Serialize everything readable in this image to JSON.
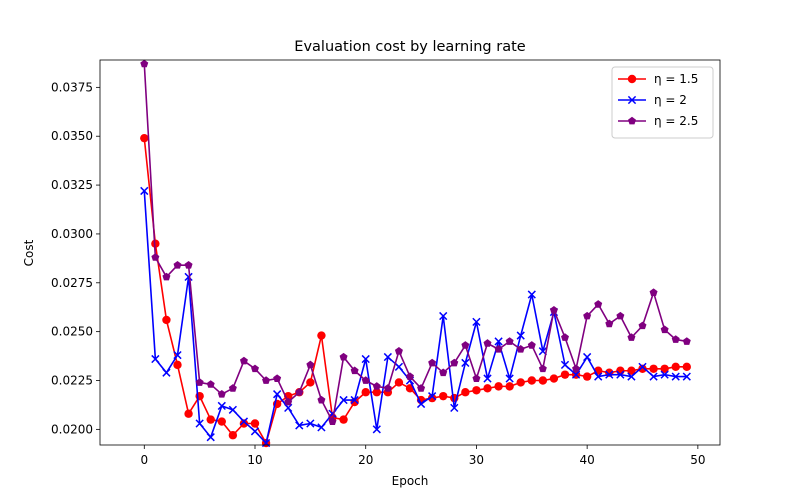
{
  "chart_data": {
    "type": "line",
    "title": "Evaluation cost by learning rate",
    "xlabel": "Epoch",
    "ylabel": "Cost",
    "xlim": [
      -4,
      52
    ],
    "ylim": [
      0.0192,
      0.0389
    ],
    "xticks": [
      0,
      10,
      20,
      30,
      40,
      50
    ],
    "yticks": [
      0.02,
      0.0225,
      0.025,
      0.0275,
      0.03,
      0.0325,
      0.035,
      0.0375
    ],
    "ytick_labels": [
      "0.0200",
      "0.0225",
      "0.0250",
      "0.0275",
      "0.0300",
      "0.0325",
      "0.0350",
      "0.0375"
    ],
    "grid": false,
    "legend_position": "top-right",
    "x": [
      0,
      1,
      2,
      3,
      4,
      5,
      6,
      7,
      8,
      9,
      10,
      11,
      12,
      13,
      14,
      15,
      16,
      17,
      18,
      19,
      20,
      21,
      22,
      23,
      24,
      25,
      26,
      27,
      28,
      29,
      30,
      31,
      32,
      33,
      34,
      35,
      36,
      37,
      38,
      39,
      40,
      41,
      42,
      43,
      44,
      45,
      46,
      47,
      48,
      49
    ],
    "series": [
      {
        "name": "η = 1.5",
        "color": "#ff0000",
        "marker": "circle",
        "values": [
          0.0349,
          0.0295,
          0.0256,
          0.0233,
          0.0208,
          0.0217,
          0.0205,
          0.0204,
          0.0197,
          0.0203,
          0.0203,
          0.0193,
          0.0213,
          0.0217,
          0.0219,
          0.0224,
          0.0248,
          0.0206,
          0.0205,
          0.0214,
          0.0219,
          0.0219,
          0.0219,
          0.0224,
          0.0221,
          0.0215,
          0.0216,
          0.0217,
          0.0216,
          0.0219,
          0.022,
          0.0221,
          0.0222,
          0.0222,
          0.0224,
          0.0225,
          0.0225,
          0.0226,
          0.0228,
          0.0228,
          0.0227,
          0.023,
          0.0229,
          0.023,
          0.023,
          0.0231,
          0.0231,
          0.0231,
          0.0232,
          0.0232
        ]
      },
      {
        "name": "η = 2",
        "color": "#0000ff",
        "marker": "x",
        "values": [
          0.0322,
          0.0236,
          0.0229,
          0.0238,
          0.0278,
          0.0203,
          0.0196,
          0.0212,
          0.021,
          0.0204,
          0.0199,
          0.0193,
          0.0218,
          0.0211,
          0.0202,
          0.0203,
          0.0201,
          0.0208,
          0.0215,
          0.0215,
          0.0236,
          0.02,
          0.0237,
          0.0232,
          0.0225,
          0.0213,
          0.0217,
          0.0258,
          0.0211,
          0.0234,
          0.0255,
          0.0226,
          0.0245,
          0.0226,
          0.0248,
          0.0269,
          0.024,
          0.026,
          0.0233,
          0.0228,
          0.0237,
          0.0227,
          0.0228,
          0.0228,
          0.0227,
          0.0232,
          0.0227,
          0.0228,
          0.0227,
          0.0227
        ]
      },
      {
        "name": "η = 2.5",
        "color": "#800080",
        "marker": "pentagon",
        "values": [
          0.0387,
          0.0288,
          0.0278,
          0.0284,
          0.0284,
          0.0224,
          0.0223,
          0.0218,
          0.0221,
          0.0235,
          0.0231,
          0.0225,
          0.0226,
          0.0214,
          0.0219,
          0.0233,
          0.0215,
          0.0204,
          0.0237,
          0.023,
          0.0225,
          0.0222,
          0.0221,
          0.024,
          0.0227,
          0.0221,
          0.0234,
          0.0229,
          0.0234,
          0.0243,
          0.0226,
          0.0244,
          0.0241,
          0.0245,
          0.0241,
          0.0243,
          0.0231,
          0.0261,
          0.0247,
          0.0231,
          0.0258,
          0.0264,
          0.0254,
          0.0258,
          0.0247,
          0.0253,
          0.027,
          0.0251,
          0.0246,
          0.0245
        ]
      }
    ]
  }
}
